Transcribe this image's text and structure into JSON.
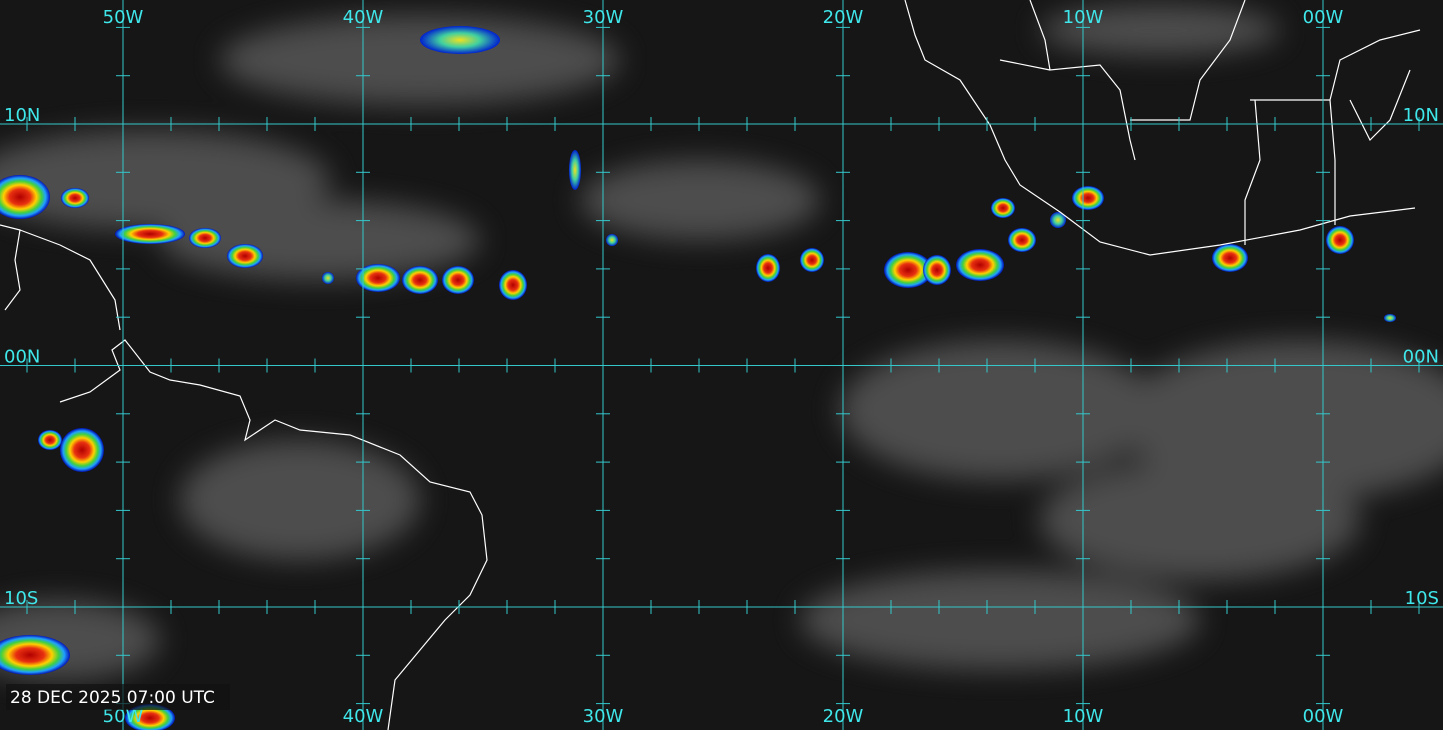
{
  "map": {
    "longitude_labels": [
      "50W",
      "40W",
      "30W",
      "20W",
      "10W",
      "00W"
    ],
    "latitude_labels": [
      "10N",
      "00N",
      "10S"
    ],
    "timestamp": "28 DEC 2025 07:00 UTC"
  }
}
